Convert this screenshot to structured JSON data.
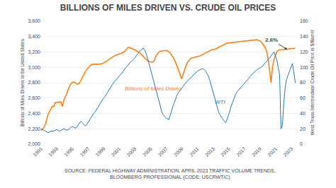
{
  "chart_data": {
    "type": "line",
    "title": "BILLIONS OF MILES DRIVEN VS. CRUDE OIL PRICES",
    "source": "SOURCE: FEDERAL HIGHWAY ADMINISTRATION, APRIL 2023 TRAFFIC VOLUME TRENDS,\nBLOOMBERG PROFESSIONAL (CODE: USCRWTIC)",
    "ylabel": "Billions of Miles Driven in the United States",
    "y2label": "West Texas Intermediate Crude Oil Price in $/Barrel",
    "x": [
      1991,
      1991.182,
      1991.363,
      1991.545,
      1991.726,
      1991.908,
      1992.089,
      1992.271,
      1992.453,
      1992.634,
      1992.816,
      1992.997,
      1993.179,
      1993.36,
      1993.542,
      1993.723,
      1993.905,
      1994.087,
      1994.268,
      1994.45,
      1994.631,
      1994.813,
      1994.994,
      1995.176,
      1995.358,
      1995.539,
      1995.721,
      1995.902,
      1996.084,
      1996.265,
      1996.447,
      1996.628,
      1996.81,
      1996.992,
      1997.173,
      1997.355,
      1997.536,
      1997.718,
      1997.899,
      1998.081,
      1998.263,
      1998.444,
      1998.626,
      1998.807,
      1998.989,
      1999.17,
      1999.352,
      1999.534,
      1999.715,
      1999.897,
      2000.078,
      2000.26,
      2000.441,
      2000.623,
      2000.804,
      2000.986,
      2001.168,
      2001.349,
      2001.531,
      2001.712,
      2001.894,
      2002.075,
      2002.257,
      2002.439,
      2002.62,
      2002.802,
      2002.983,
      2003.165,
      2003.346,
      2003.528,
      2003.709,
      2003.891,
      2004.073,
      2004.254,
      2004.436,
      2004.617,
      2004.799,
      2004.98,
      2005.162,
      2005.344,
      2005.525,
      2005.707,
      2005.888,
      2006.07,
      2006.251,
      2006.433,
      2006.615,
      2006.796,
      2006.978,
      2007.159,
      2007.341,
      2007.522,
      2007.704,
      2007.885,
      2008.067,
      2008.249,
      2008.43,
      2008.612,
      2008.793,
      2008.975,
      2009.156,
      2009.338,
      2009.52,
      2009.701,
      2009.883,
      2010.064,
      2010.246,
      2010.427,
      2010.609,
      2010.791,
      2010.972,
      2011.154,
      2011.335,
      2011.517,
      2011.698,
      2011.88,
      2012.061,
      2012.243,
      2012.425,
      2012.606,
      2012.788,
      2012.969,
      2013.151,
      2013.332,
      2013.514,
      2013.696,
      2013.877,
      2014.059,
      2014.24,
      2014.422,
      2014.603,
      2014.785,
      2014.966,
      2015.148,
      2015.33,
      2015.511,
      2015.693,
      2015.874,
      2016.056,
      2016.237,
      2016.419,
      2016.601,
      2016.782,
      2016.964,
      2017.145,
      2017.327,
      2017.508,
      2017.69,
      2017.872,
      2018.053,
      2018.235,
      2018.416,
      2018.598,
      2018.779,
      2018.961,
      2019.142,
      2019.324,
      2019.506,
      2019.687,
      2019.869,
      2020.05,
      2020.232,
      2020.413,
      2020.595,
      2020.777,
      2020.958,
      2021.14,
      2021.321,
      2021.503,
      2021.684,
      2021.866,
      2022.047,
      2022.229,
      2022.411,
      2022.592,
      2022.774,
      2022.955,
      2023.137,
      2023.318,
      2023.5
    ],
    "series": [
      {
        "name": "WTI",
        "axis": "y2",
        "values": [
          20,
          19,
          18,
          17,
          16,
          15,
          16,
          17,
          17,
          17,
          18,
          19,
          18,
          17,
          18,
          19,
          20,
          19,
          18,
          19,
          20,
          22,
          23,
          22,
          21,
          22,
          25,
          28,
          30,
          28,
          26,
          24,
          25,
          28,
          32,
          35,
          38,
          40,
          42,
          45,
          48,
          52,
          55,
          58,
          60,
          62,
          65,
          68,
          72,
          75,
          78,
          80,
          82,
          84,
          86,
          88,
          90,
          92,
          95,
          98,
          100,
          103,
          105,
          107,
          108,
          110,
          112,
          115,
          118,
          120,
          122,
          124,
          125,
          122,
          118,
          112,
          105,
          98,
          90,
          82,
          75,
          68,
          62,
          55,
          48,
          42,
          38,
          36,
          34,
          33,
          32,
          38,
          45,
          50,
          55,
          60,
          65,
          68,
          70,
          72,
          75,
          78,
          80,
          82,
          84,
          86,
          88,
          90,
          92,
          94,
          95,
          96,
          97,
          98,
          98,
          97,
          95,
          92,
          88,
          82,
          75,
          68,
          62,
          55,
          48,
          42,
          38,
          35,
          32,
          30,
          28,
          32,
          38,
          45,
          50,
          55,
          60,
          65,
          68,
          70,
          72,
          74,
          76,
          78,
          80,
          82,
          85,
          88,
          90,
          92,
          94,
          95,
          97,
          98,
          99,
          100,
          102,
          104,
          106,
          108,
          110,
          112,
          115,
          118,
          120,
          115,
          110,
          100,
          90,
          20,
          25,
          55,
          75,
          85,
          90,
          95,
          100,
          105,
          95,
          80
        ]
      },
      {
        "name": "Billions of Miles Driven",
        "values": [
          2172,
          2194,
          2219,
          2257,
          2337,
          2395,
          2427,
          2464,
          2493,
          2491,
          2541,
          2540,
          2548,
          2548,
          2548,
          2491,
          2571,
          2614,
          2652,
          2709,
          2757,
          2789,
          2802,
          2808,
          2800,
          2784,
          2780,
          2794,
          2829,
          2870,
          2908,
          2941,
          2969,
          2991,
          3013,
          3030,
          3038,
          3041,
          3043,
          3041,
          3039,
          3040,
          3042,
          3048,
          3055,
          3064,
          3075,
          3089,
          3105,
          3119,
          3131,
          3141,
          3152,
          3161,
          3169,
          3175,
          3180,
          3186,
          3196,
          3210,
          3230,
          3255,
          3260,
          3250,
          3240,
          3235,
          3230,
          3220,
          3210,
          3195,
          3180,
          3160,
          3140,
          3120,
          3100,
          3085,
          3075,
          3070,
          3068,
          3069,
          3100,
          3150,
          3180,
          3200,
          3210,
          3215,
          3218,
          3219,
          3220,
          3215,
          3205,
          3185,
          3160,
          3130,
          3095,
          3055,
          3010,
          2960,
          2900,
          2850,
          2900,
          2970,
          3020,
          3060,
          3090,
          3110,
          3120,
          3125,
          3128,
          3130,
          3135,
          3140,
          3150,
          3160,
          3170,
          3180,
          3190,
          3200,
          3210,
          3220,
          3225,
          3230,
          3232,
          3240,
          3250,
          3260,
          3270,
          3280,
          3290,
          3300,
          3310,
          3315,
          3318,
          3320,
          3322,
          3325,
          3327,
          3330,
          3332,
          3334,
          3336,
          3338,
          3340,
          3342,
          3344,
          3346,
          3348,
          3350,
          3352,
          3354,
          3356,
          3358,
          3360,
          3350,
          3345,
          3330,
          3310,
          3280,
          3250,
          3200,
          3100,
          2950,
          2800,
          3000,
          3100,
          3150,
          3200,
          3220,
          3225,
          3228,
          3230,
          3232,
          3234,
          3236,
          3238,
          3240,
          3242,
          3244,
          3246,
          3248
        ]
      }
    ],
    "xlim": [
      1991,
      2024
    ],
    "xticks": [
      1991,
      1993,
      1995,
      1997,
      1999,
      2001,
      2003,
      2005,
      2007,
      2009,
      2011,
      2013,
      2015,
      2017,
      2019,
      2021,
      2023
    ],
    "ylim": [
      2000,
      3600
    ],
    "yticks": [
      {
        "value": 2000,
        "label": "2,000"
      },
      {
        "value": 2200,
        "label": "2,200"
      },
      {
        "value": 2400,
        "label": "2,400"
      },
      {
        "value": 2600,
        "label": "2,600"
      },
      {
        "value": 2800,
        "label": "2,800"
      },
      {
        "value": 3000,
        "label": "3,000"
      },
      {
        "value": 3200,
        "label": "3,200"
      },
      {
        "value": 3400,
        "label": "3,400"
      },
      {
        "value": 3600,
        "label": "3,600"
      }
    ],
    "y2lim": [
      0,
      160
    ],
    "y2ticks": [
      0,
      20,
      40,
      60,
      80,
      100,
      120,
      140,
      160
    ],
    "grid": true,
    "annotations": [
      {
        "text": "2.6%",
        "x": 2022.5,
        "y": 3230
      }
    ]
  }
}
